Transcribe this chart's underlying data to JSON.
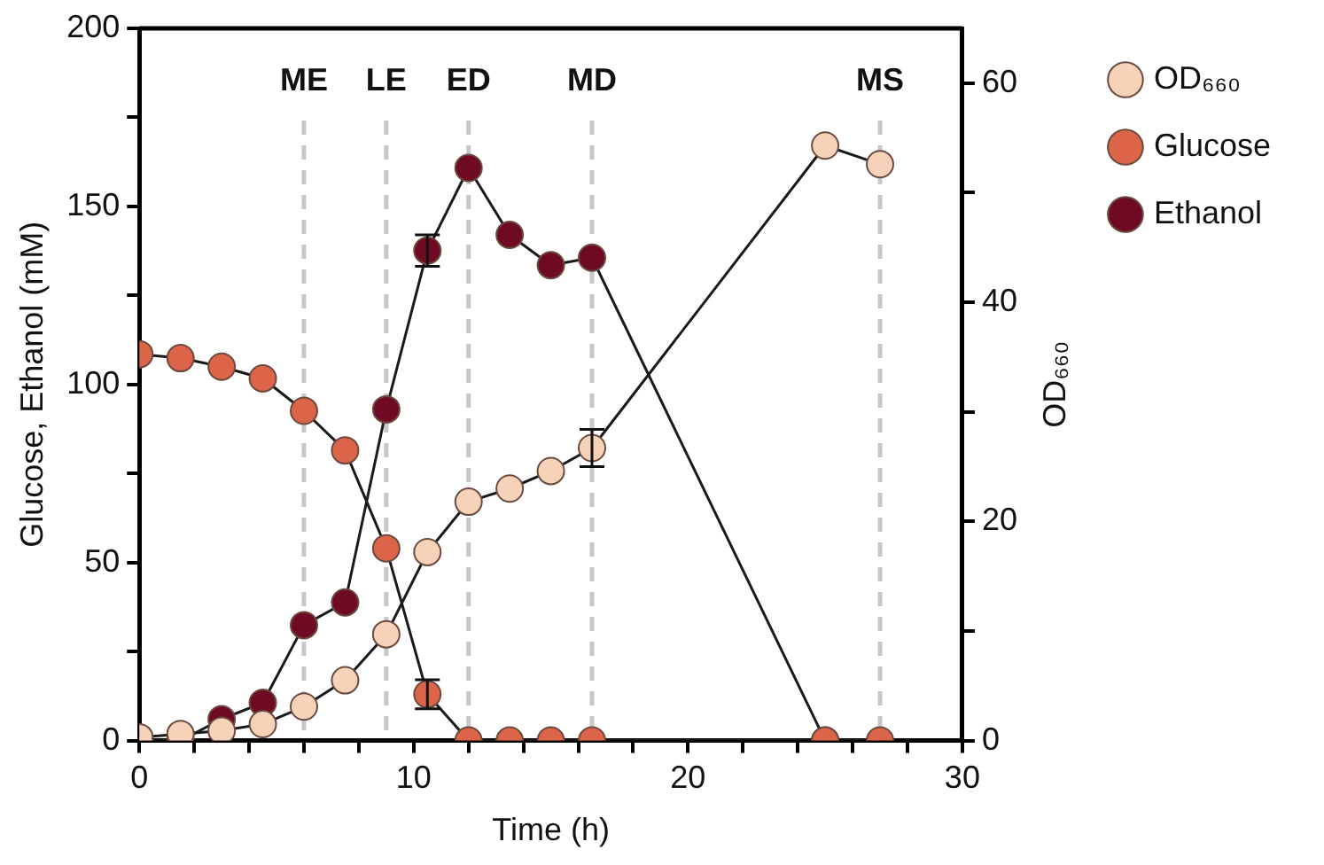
{
  "chart_data": {
    "type": "line",
    "xlabel": "Time (h)",
    "ylabel": "Glucose, Ethanol (mM)",
    "y2label": "OD₆₆₀",
    "x": [
      0,
      1.5,
      3,
      4.5,
      6,
      7.5,
      9,
      10.5,
      12,
      13.5,
      15,
      16.5,
      25,
      27
    ],
    "series": [
      {
        "name": "OD₆₆₀",
        "color": "#f6d2b8",
        "axis": "y2",
        "values": [
          0.3,
          0.6,
          0.9,
          1.5,
          3.1,
          5.5,
          9.7,
          17.2,
          21.8,
          23,
          24.6,
          26.7,
          54.3,
          52.6
        ],
        "errors": [
          null,
          null,
          null,
          null,
          null,
          null,
          null,
          null,
          null,
          null,
          null,
          1.7,
          null,
          null
        ]
      },
      {
        "name": "Glucose",
        "color": "#dc6448",
        "values": [
          108.5,
          107.4,
          105,
          101.7,
          92.6,
          81.5,
          54,
          13,
          0,
          0,
          0,
          0,
          0,
          0
        ],
        "errors": [
          null,
          null,
          null,
          null,
          null,
          null,
          null,
          4.1,
          null,
          null,
          null,
          null,
          null,
          null
        ]
      },
      {
        "name": "Ethanol",
        "color": "#6e0a24",
        "values": [
          0,
          0,
          6,
          10.6,
          32.4,
          38.8,
          93,
          137.6,
          160.8,
          142,
          133.5,
          135.6,
          0,
          null
        ],
        "errors": [
          null,
          null,
          null,
          null,
          null,
          null,
          null,
          4.4,
          null,
          null,
          null,
          null,
          null,
          null
        ]
      }
    ],
    "xlim": [
      0,
      30
    ],
    "xticks": [
      0,
      {
        "value": 2,
        "label": null
      },
      {
        "value": 4,
        "label": null
      },
      {
        "value": 6,
        "label": null
      },
      {
        "value": 8,
        "label": null
      },
      10,
      {
        "value": 12,
        "label": null
      },
      {
        "value": 14,
        "label": null
      },
      {
        "value": 16,
        "label": null
      },
      {
        "value": 18,
        "label": null
      },
      20,
      {
        "value": 22,
        "label": null
      },
      {
        "value": 24,
        "label": null
      },
      {
        "value": 26,
        "label": null
      },
      {
        "value": 28,
        "label": null
      },
      30
    ],
    "ylim": [
      0,
      200
    ],
    "yticks": [
      0,
      {
        "value": 25,
        "label": null
      },
      50,
      {
        "value": 75,
        "label": null
      },
      100,
      {
        "value": 125,
        "label": null
      },
      150,
      {
        "value": 175,
        "label": null
      },
      200
    ],
    "y2lim": [
      0,
      65
    ],
    "y2ticks": [
      0,
      {
        "value": 10,
        "label": null
      },
      20,
      {
        "value": 30,
        "label": null
      },
      40,
      {
        "value": 50,
        "label": null
      },
      60
    ],
    "ref_lines": [
      {
        "axis": "x",
        "value": 6,
        "label": "ME",
        "color": "#c8c8c8",
        "line_style": "dashed"
      },
      {
        "axis": "x",
        "value": 9,
        "label": "LE",
        "color": "#c8c8c8",
        "line_style": "dashed"
      },
      {
        "axis": "x",
        "value": 12,
        "label": "ED",
        "color": "#c8c8c8",
        "line_style": "dashed"
      },
      {
        "axis": "x",
        "value": 16.5,
        "label": "MD",
        "color": "#c8c8c8",
        "line_style": "dashed"
      },
      {
        "axis": "x",
        "value": 27,
        "label": "MS",
        "color": "#c8c8c8",
        "line_style": "dashed"
      }
    ],
    "grid": false,
    "legend": "right",
    "marker": "circle",
    "line_style": "solid"
  }
}
